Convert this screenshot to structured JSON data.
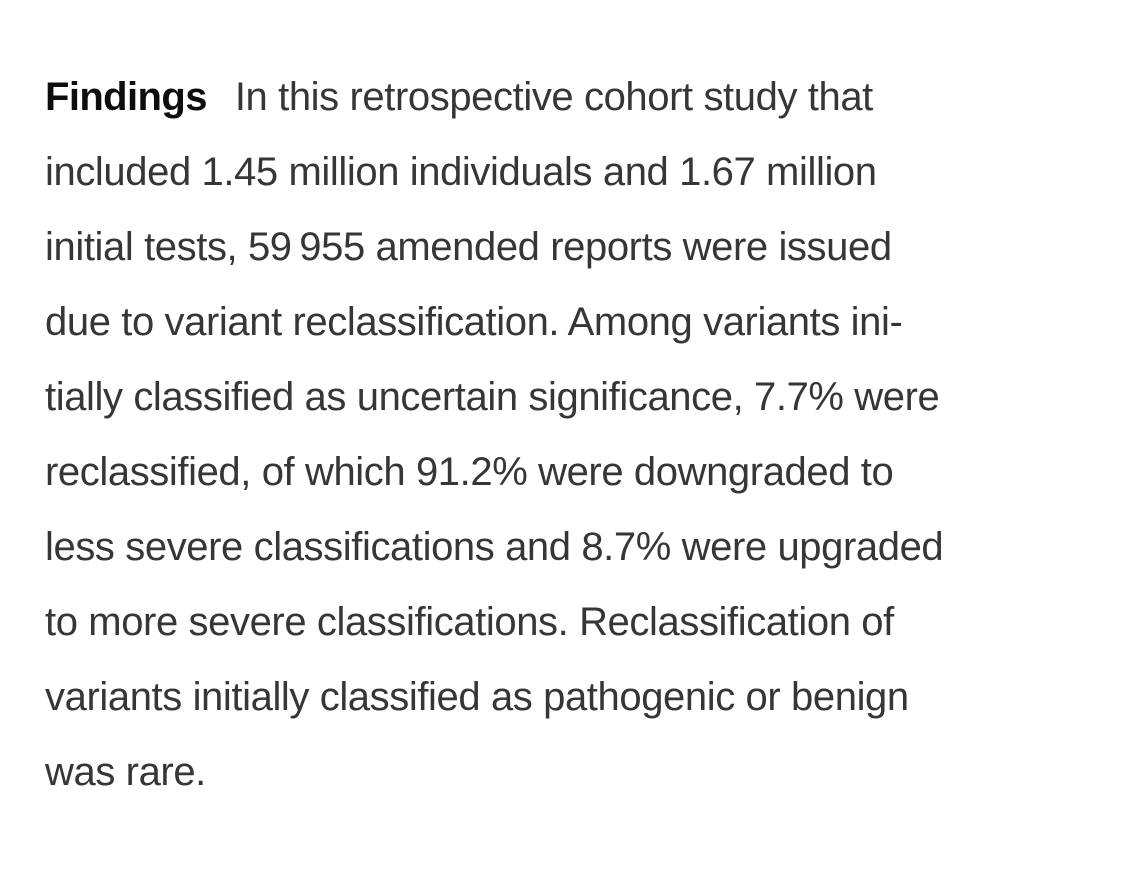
{
  "page": {
    "background_color": "#ffffff",
    "body_text_color": "#363636",
    "label_text_color": "#0d0d0d"
  },
  "abstract": {
    "section_label": "Findings",
    "body": "In this retrospective cohort study that included 1.45 million individuals and 1.67 million initial tests, 59 955 amended reports were issued due to variant reclassification. Among variants initially classified as uncertain significance, 7.7% were reclassified, of which 91.2% were downgraded to less severe classifications and 8.7% were upgraded to more severe classifications. Reclassification of variants initially classified as pathogenic or benign was rare.",
    "lines": [
      "In this retrospective cohort study that",
      "included 1.45 million individuals and 1.67 million",
      "initial tests, 59 955 amended reports were issued",
      "due to variant reclassification. Among variants ini-",
      "tially classified as uncertain significance, 7.7% were",
      "reclassified, of which 91.2% were downgraded to",
      "less severe classifications and 8.7% were upgraded",
      "to more severe classifications. Reclassification of",
      "variants initially classified as pathogenic or benign",
      "was rare."
    ]
  }
}
